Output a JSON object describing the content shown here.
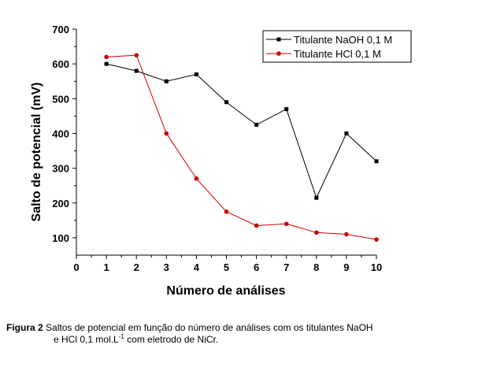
{
  "chart_data": {
    "type": "line",
    "xlabel": "Número de análises",
    "ylabel": "Salto de potencial (mV)",
    "xlim": [
      0,
      10
    ],
    "ylim": [
      50,
      700
    ],
    "xticks": [
      0,
      1,
      2,
      3,
      4,
      5,
      6,
      7,
      8,
      9,
      10
    ],
    "yticks": [
      100,
      200,
      300,
      400,
      500,
      600,
      700
    ],
    "grid": false,
    "legend_position": "top-right",
    "x": [
      1,
      2,
      3,
      4,
      5,
      6,
      7,
      8,
      9,
      10
    ],
    "series": [
      {
        "name": "Titulante NaOH 0,1 M",
        "marker": "square",
        "color": "#000000",
        "values": [
          600,
          580,
          550,
          570,
          490,
          425,
          470,
          215,
          400,
          320
        ]
      },
      {
        "name": "Titulante HCl 0,1 M",
        "marker": "circle",
        "color": "#cc0000",
        "values": [
          620,
          625,
          400,
          270,
          175,
          135,
          140,
          115,
          110,
          95
        ]
      }
    ]
  },
  "caption": {
    "label": "Figura 2",
    "text1": " Saltos de potencial em função do número de análises com os titulantes NaOH",
    "text2": "e HCl 0,1 mol.L",
    "sup": "-1",
    "text3": " com eletrodo de NiCr."
  }
}
